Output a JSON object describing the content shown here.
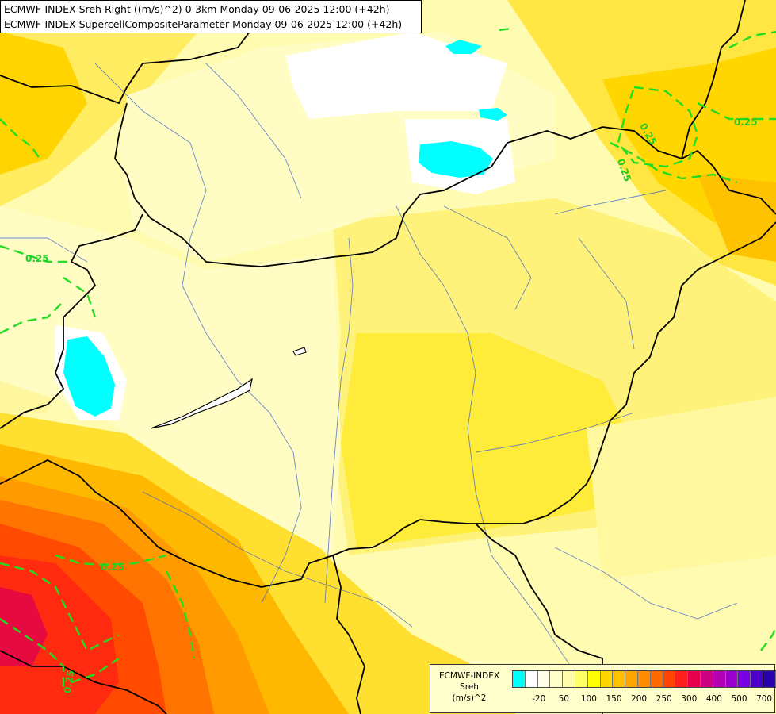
{
  "header": {
    "line1": "ECMWF-INDEX Sreh Right ((m/s)^2) 0-3km Monday 09-06-2025 12:00 (+42h)",
    "line2": "ECMWF-INDEX SupercellCompositeParameter Monday 09-06-2025 12:00 (+42h)"
  },
  "contours": {
    "label": "0.25",
    "color": "#22dd22"
  },
  "legend": {
    "line1": "ECMWF-INDEX",
    "line2": "Sreh",
    "line3": "(m/s)^2",
    "colors": [
      "#00ffff",
      "#ffffff",
      "#ffffe6",
      "#ffffcc",
      "#ffffaa",
      "#ffff66",
      "#ffff00",
      "#ffd700",
      "#ffc000",
      "#ffa500",
      "#ff8c00",
      "#ff6a00",
      "#ff4500",
      "#ff1f1f",
      "#e6004c",
      "#cc0080",
      "#b300b3",
      "#9900cc",
      "#7a00e6",
      "#4d00cc",
      "#2a00aa",
      "#000080"
    ],
    "ticks": [
      {
        "label": "-20",
        "i": 1
      },
      {
        "label": "50",
        "i": 3
      },
      {
        "label": "100",
        "i": 5
      },
      {
        "label": "150",
        "i": 7
      },
      {
        "label": "200",
        "i": 9
      },
      {
        "label": "250",
        "i": 11
      },
      {
        "label": "300",
        "i": 13
      },
      {
        "label": "400",
        "i": 15
      },
      {
        "label": "500",
        "i": 17
      },
      {
        "label": "700",
        "i": 19
      }
    ]
  }
}
